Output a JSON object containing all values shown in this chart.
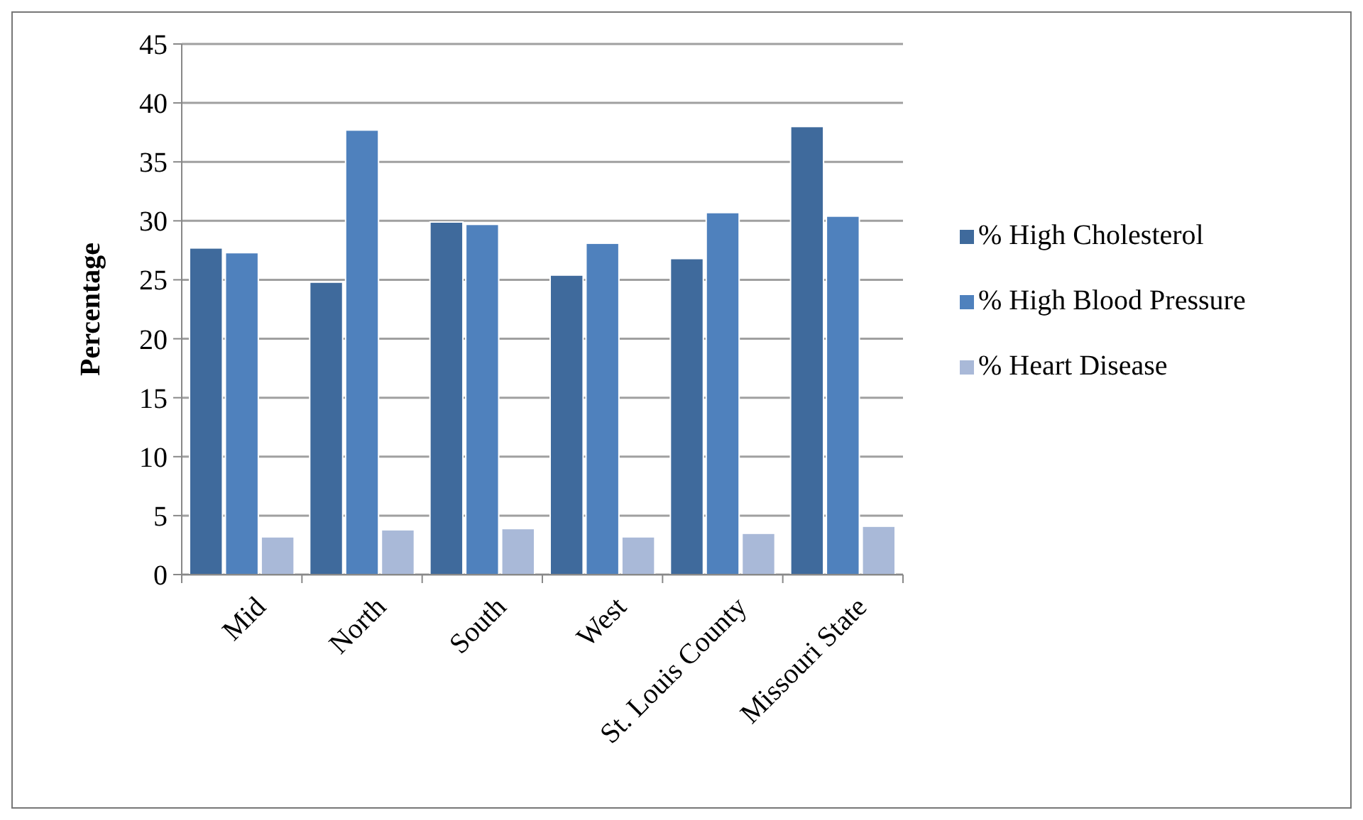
{
  "chart_data": {
    "type": "bar",
    "ylabel": "Percentage",
    "categories": [
      "Mid",
      "North",
      "South",
      "West",
      "St. Louis County",
      "Missouri State"
    ],
    "series": [
      {
        "name": "% High Cholesterol",
        "color": "#3f6a9c",
        "values": [
          27.7,
          24.8,
          29.9,
          25.4,
          26.8,
          38.0
        ]
      },
      {
        "name": "% High Blood Pressure",
        "color": "#4f81bd",
        "values": [
          27.3,
          37.7,
          29.7,
          28.1,
          30.7,
          30.4
        ]
      },
      {
        "name": "% Heart Disease",
        "color": "#a9b9d8",
        "values": [
          3.2,
          3.8,
          3.9,
          3.2,
          3.5,
          4.1
        ]
      }
    ],
    "ylim": [
      0,
      45
    ],
    "yticks": [
      0,
      5,
      10,
      15,
      20,
      25,
      30,
      35,
      40,
      45
    ],
    "grid": "y",
    "legend": "right"
  }
}
